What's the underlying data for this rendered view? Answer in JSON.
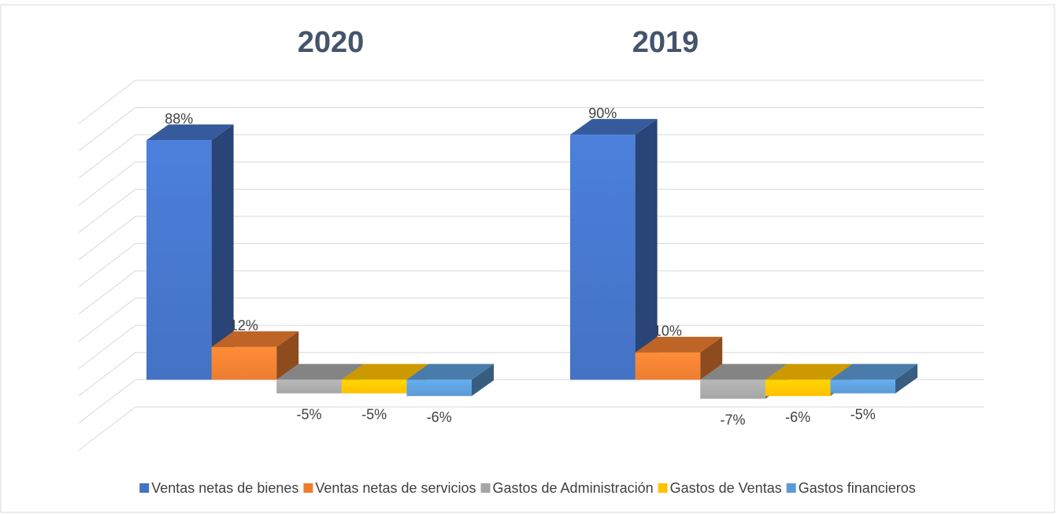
{
  "chart_data": {
    "type": "bar3d",
    "categories": [
      "2020",
      "2019"
    ],
    "series": [
      {
        "name": "Ventas netas de bienes",
        "color": "#4472c4",
        "values": [
          88,
          90
        ],
        "value_labels": [
          "88%",
          "90%"
        ]
      },
      {
        "name": "Ventas netas de servicios",
        "color": "#ed7d31",
        "values": [
          12,
          10
        ],
        "value_labels": [
          "12%",
          "10%"
        ]
      },
      {
        "name": "Gastos de Administración",
        "color": "#a5a5a5",
        "values": [
          -5,
          -7
        ],
        "value_labels": [
          "-5%",
          "-7%"
        ]
      },
      {
        "name": "Gastos de Ventas",
        "color": "#ffc000",
        "values": [
          -5,
          -6
        ],
        "value_labels": [
          "-5%",
          "-6%"
        ]
      },
      {
        "name": "Gastos financieros",
        "color": "#5b9bd5",
        "values": [
          -6,
          -5
        ],
        "value_labels": [
          "-6%",
          "-5%"
        ]
      }
    ],
    "ylim": [
      -10,
      110
    ],
    "yticks": [
      -10,
      0,
      10,
      20,
      30,
      40,
      50,
      60,
      70,
      80,
      90,
      100,
      110
    ],
    "grid": true,
    "legend": "bottom"
  }
}
